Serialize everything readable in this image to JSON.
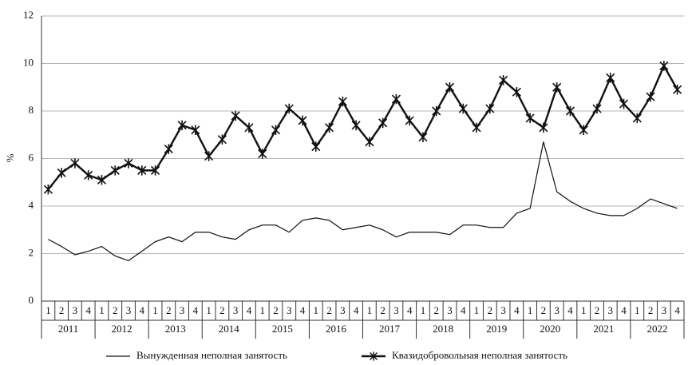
{
  "chart_data": {
    "type": "line",
    "y_label": "%",
    "categories": [
      "1",
      "2",
      "3",
      "4",
      "1",
      "2",
      "3",
      "4",
      "1",
      "2",
      "3",
      "4",
      "1",
      "2",
      "3",
      "4",
      "1",
      "2",
      "3",
      "4",
      "1",
      "2",
      "3",
      "4",
      "1",
      "2",
      "3",
      "4",
      "1",
      "2",
      "3",
      "4",
      "1",
      "2",
      "3",
      "4",
      "1",
      "2",
      "3",
      "4",
      "1",
      "2",
      "3",
      "4",
      "1",
      "2",
      "3",
      "4"
    ],
    "years": [
      "2011",
      "2012",
      "2013",
      "2014",
      "2015",
      "2016",
      "2017",
      "2018",
      "2019",
      "2020",
      "2021",
      "2022"
    ],
    "series": [
      {
        "name": "Вынужденная неполная занятость",
        "color": "#111111",
        "marker": "none",
        "width": 1.2,
        "values": [
          2.6,
          2.3,
          1.95,
          2.1,
          2.3,
          1.9,
          1.7,
          2.1,
          2.5,
          2.7,
          2.5,
          2.9,
          2.9,
          2.7,
          2.6,
          3.0,
          3.2,
          3.2,
          2.9,
          3.4,
          3.5,
          3.4,
          3.0,
          3.1,
          3.2,
          3.0,
          2.7,
          2.9,
          2.9,
          2.9,
          2.8,
          3.2,
          3.2,
          3.1,
          3.1,
          3.7,
          3.9,
          6.7,
          4.6,
          4.2,
          3.9,
          3.7,
          3.6,
          3.6,
          3.9,
          4.3,
          4.1,
          3.9
        ]
      },
      {
        "name": "Квазидобровольная неполная занятость",
        "color": "#111111",
        "marker": "asterisk",
        "width": 2.4,
        "values": [
          4.7,
          5.4,
          5.8,
          5.3,
          5.1,
          5.5,
          5.8,
          5.5,
          5.5,
          6.4,
          7.4,
          7.2,
          6.1,
          6.8,
          7.8,
          7.3,
          6.2,
          7.2,
          8.1,
          7.6,
          6.5,
          7.3,
          8.4,
          7.4,
          6.7,
          7.5,
          8.5,
          7.6,
          6.9,
          8.0,
          9.0,
          8.1,
          7.3,
          8.1,
          9.3,
          8.8,
          7.7,
          7.3,
          9.0,
          8.0,
          7.2,
          8.1,
          9.4,
          8.3,
          7.7,
          8.6,
          9.9,
          8.9
        ]
      }
    ],
    "ylim": [
      0,
      12
    ],
    "yticks": [
      0,
      2,
      4,
      6,
      8,
      10,
      12
    ],
    "grid": true,
    "legend": "bottom"
  }
}
